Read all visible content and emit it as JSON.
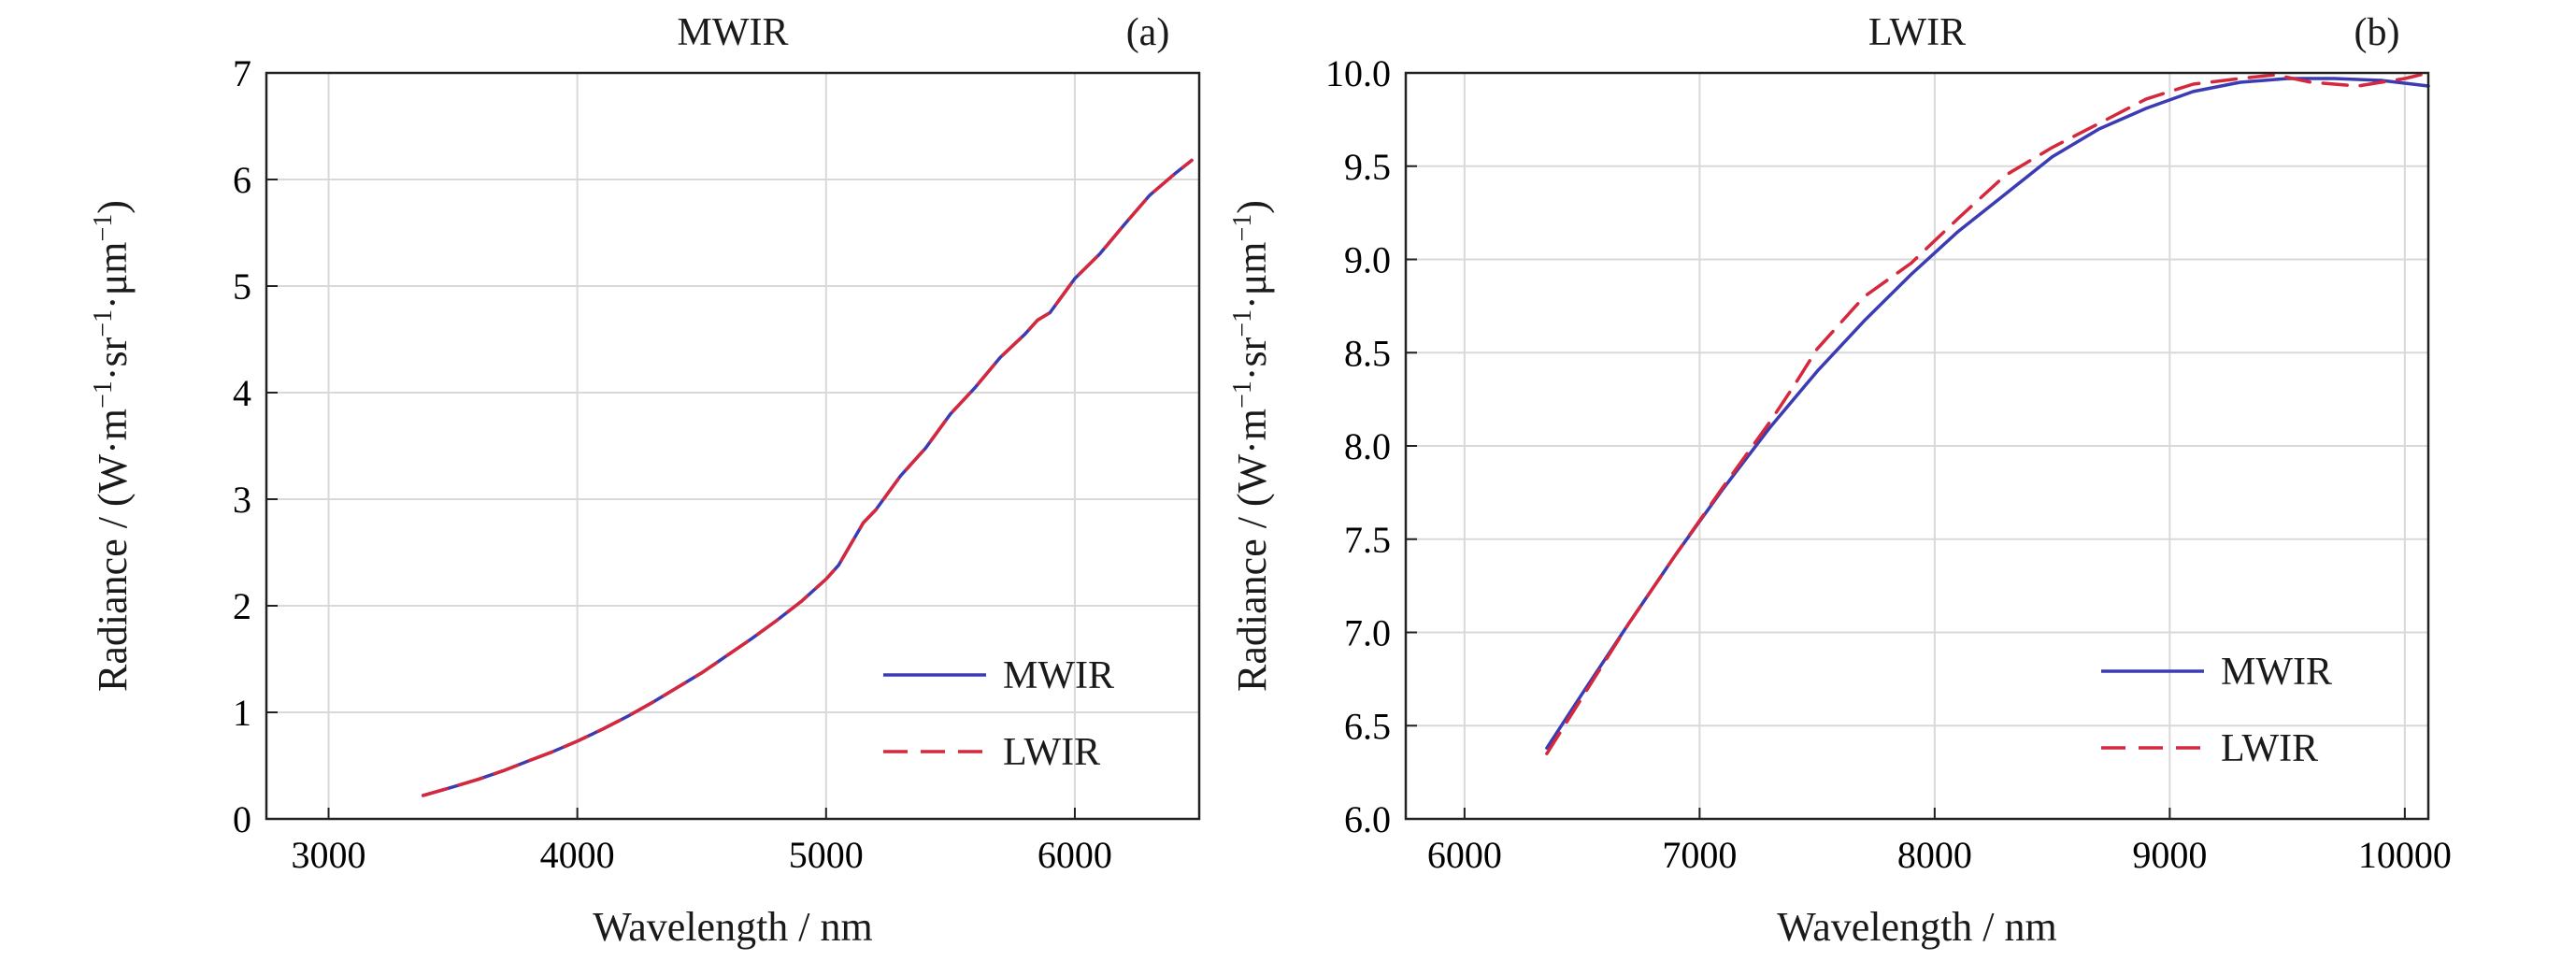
{
  "colors": {
    "mwir": "#3b3bb3",
    "lwir": "#d6283c",
    "grid": "#d9d9d9",
    "axis": "#222222"
  },
  "chart_data": [
    {
      "type": "line",
      "panel_tag": "(a)",
      "title": "MWIR",
      "xlabel": "Wavelength / nm",
      "ylabel": "Radiance / (W·m",
      "xlim": [
        2750,
        6500
      ],
      "ylim": [
        0,
        7
      ],
      "xticks": [
        3000,
        4000,
        5000,
        6000
      ],
      "yticks": [
        0,
        1,
        2,
        3,
        4,
        5,
        6,
        7
      ],
      "ytick_labels": [
        "0",
        "1",
        "2",
        "3",
        "4",
        "5",
        "6",
        "7"
      ],
      "grid": true,
      "legend_position": "lower-right",
      "series": [
        {
          "name": "MWIR",
          "style": "solid",
          "x": [
            3380,
            3500,
            3600,
            3700,
            3800,
            3900,
            4000,
            4100,
            4200,
            4300,
            4400,
            4500,
            4600,
            4700,
            4800,
            4900,
            5000,
            5050,
            5100,
            5150,
            5200,
            5300,
            5400,
            5500,
            5600,
            5700,
            5800,
            5850,
            5900,
            6000,
            6100,
            6200,
            6300,
            6400,
            6470
          ],
          "y": [
            0.22,
            0.3,
            0.37,
            0.45,
            0.54,
            0.63,
            0.73,
            0.84,
            0.96,
            1.09,
            1.23,
            1.37,
            1.53,
            1.69,
            1.86,
            2.04,
            2.25,
            2.38,
            2.58,
            2.78,
            2.9,
            3.22,
            3.48,
            3.8,
            4.05,
            4.33,
            4.55,
            4.68,
            4.75,
            5.07,
            5.3,
            5.58,
            5.85,
            6.05,
            6.18
          ]
        },
        {
          "name": "LWIR",
          "style": "dashed",
          "x": [
            3380,
            3500,
            3600,
            3700,
            3800,
            3900,
            4000,
            4100,
            4200,
            4300,
            4400,
            4500,
            4600,
            4700,
            4800,
            4900,
            5000,
            5050,
            5100,
            5150,
            5200,
            5300,
            5400,
            5500,
            5600,
            5700,
            5800,
            5850,
            5900,
            6000,
            6100,
            6200,
            6300,
            6400,
            6470
          ],
          "y": [
            0.22,
            0.3,
            0.37,
            0.45,
            0.54,
            0.63,
            0.73,
            0.84,
            0.96,
            1.09,
            1.23,
            1.37,
            1.53,
            1.69,
            1.86,
            2.04,
            2.25,
            2.38,
            2.58,
            2.78,
            2.9,
            3.22,
            3.48,
            3.8,
            4.05,
            4.33,
            4.55,
            4.68,
            4.75,
            5.07,
            5.3,
            5.58,
            5.85,
            6.05,
            6.18
          ]
        }
      ]
    },
    {
      "type": "line",
      "panel_tag": "(b)",
      "title": "LWIR",
      "xlabel": "Wavelength / nm",
      "ylabel": "Radiance / (W·m",
      "xlim": [
        5750,
        10100
      ],
      "ylim": [
        6.0,
        10.0
      ],
      "xticks": [
        6000,
        7000,
        8000,
        9000,
        10000
      ],
      "yticks": [
        6.0,
        6.5,
        7.0,
        7.5,
        8.0,
        8.5,
        9.0,
        9.5,
        10.0
      ],
      "ytick_labels": [
        "6.0",
        "6.5",
        "7.0",
        "7.5",
        "8.0",
        "8.5",
        "9.0",
        "9.5",
        "10.0"
      ],
      "grid": true,
      "legend_position": "lower-right",
      "series": [
        {
          "name": "MWIR",
          "style": "solid",
          "x": [
            6350,
            6500,
            6700,
            6900,
            7100,
            7300,
            7500,
            7700,
            7900,
            8100,
            8300,
            8500,
            8700,
            8900,
            9100,
            9300,
            9500,
            9700,
            9900,
            10100
          ],
          "y": [
            6.38,
            6.67,
            7.05,
            7.42,
            7.77,
            8.1,
            8.4,
            8.67,
            8.92,
            9.15,
            9.35,
            9.55,
            9.7,
            9.81,
            9.9,
            9.95,
            9.97,
            9.97,
            9.96,
            9.93
          ]
        },
        {
          "name": "LWIR",
          "style": "dashed",
          "x": [
            6350,
            6500,
            6700,
            6900,
            7100,
            7300,
            7400,
            7500,
            7700,
            7900,
            8100,
            8300,
            8500,
            8700,
            8900,
            9100,
            9300,
            9450,
            9600,
            9800,
            10000,
            10100
          ],
          "y": [
            6.35,
            6.65,
            7.05,
            7.42,
            7.78,
            8.13,
            8.32,
            8.52,
            8.8,
            8.98,
            9.22,
            9.45,
            9.6,
            9.73,
            9.86,
            9.94,
            9.97,
            9.99,
            9.95,
            9.93,
            9.97,
            10.0
          ]
        }
      ]
    }
  ]
}
